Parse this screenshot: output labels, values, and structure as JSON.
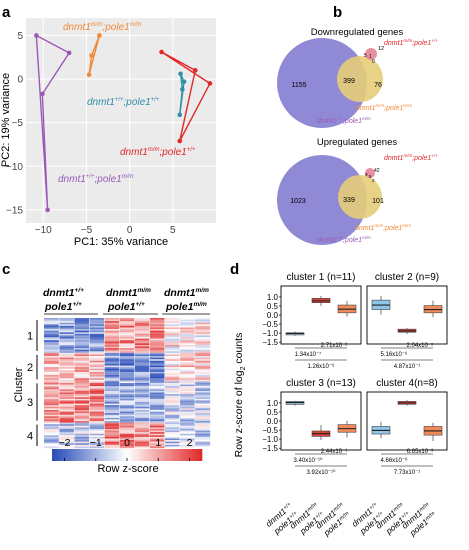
{
  "panels": {
    "a": "a",
    "b": "b",
    "c": "c",
    "d": "d"
  },
  "colors": {
    "wt": "#2e8fa6",
    "pole_mut": "#9b59b6",
    "dnmt_mut": "#e02828",
    "double_mut": "#f08a3a",
    "venn_purple": "#8a83d4",
    "venn_yellow": "#e5cd78",
    "venn_pink": "#e88a9b",
    "box_blue": "#8ec5e8",
    "box_red": "#d9433a",
    "box_orange": "#f08a5a"
  },
  "pca": {
    "xlabel": "PC1: 35%  variance",
    "ylabel": "PC2: 19%  variance",
    "labels": {
      "double": "dnmt1m/m;pole1m/m",
      "wt": "dnmt1+/+;pole1+/+",
      "dnmt": "dnmt1m/m;pole1+/+",
      "pole": "dnmt1+/+;pole1m/m"
    },
    "label_parts": {
      "double": [
        "dnmt1",
        "m/m",
        ";pole1",
        "m/m"
      ],
      "wt": [
        "dnmt1",
        "+/+",
        ";pole1",
        "+/+"
      ],
      "dnmt": [
        "dnmt1",
        "m/m",
        ";pole1",
        "+/+"
      ],
      "pole": [
        "dnmt1",
        "+/+",
        ";pole1",
        "m/m"
      ]
    }
  },
  "chart_data": [
    {
      "type": "scatter",
      "xlabel": "PC1: 35%  variance",
      "ylabel": "PC2: 19%  variance",
      "xlim": [
        -12,
        10
      ],
      "ylim": [
        -16.5,
        7
      ],
      "xticks": [
        -10,
        -5,
        0,
        5
      ],
      "yticks": [
        5,
        0,
        -5,
        -10,
        -15
      ],
      "grid": true,
      "series": [
        {
          "name": "dnmt1m/m;pole1m/m",
          "color": "#f08a3a",
          "x": [
            -4.7,
            -4.4,
            -3.5
          ],
          "y": [
            0.5,
            2.7,
            5.0
          ]
        },
        {
          "name": "dnmt1+/+;pole1+/+",
          "color": "#2e8fa6",
          "x": [
            5.8,
            6.3,
            5.9,
            6.1
          ],
          "y": [
            -4.1,
            -0.3,
            0.6,
            -1.2
          ]
        },
        {
          "name": "dnmt1m/m;pole1+/+",
          "color": "#e02828",
          "x": [
            3.7,
            9.3,
            5.8,
            7.6
          ],
          "y": [
            3.1,
            -0.5,
            -7.1,
            1.0
          ]
        },
        {
          "name": "dnmt1+/+;pole1m/m",
          "color": "#9b59b6",
          "x": [
            -10.8,
            -7.0,
            -10.1,
            -9.5
          ],
          "y": [
            5.0,
            3.0,
            -1.7,
            -15.0
          ]
        }
      ]
    },
    {
      "type": "heatmap",
      "colorbar_label": "Row z-score",
      "colorbar_ticks": [
        -2,
        -1,
        0,
        1,
        2
      ],
      "columns": [
        "dnmt1+/+;pole1+/+",
        "dnmt1+/+;pole1+/+",
        "dnmt1+/+;pole1+/+",
        "dnmt1+/+;pole1+/+",
        "dnmt1m/m;pole1+/+",
        "dnmt1m/m;pole1+/+",
        "dnmt1m/m;pole1+/+",
        "dnmt1m/m;pole1+/+",
        "dnmt1m/m;pole1m/m",
        "dnmt1m/m;pole1m/m",
        "dnmt1m/m;pole1m/m"
      ],
      "clusters": [
        "1",
        "2",
        "3",
        "4"
      ],
      "cluster_label": "Cluster",
      "cluster_row_counts": [
        11,
        9,
        13,
        8
      ]
    },
    {
      "type": "box",
      "ylabel": "Row  z-score of log2 counts",
      "yticks": [
        1.0,
        0.5,
        0.0,
        -0.5,
        -1.0,
        -1.5
      ],
      "ylim": [
        -1.6,
        1.6
      ],
      "categories": [
        "dnmt1+/+;pole1+/+",
        "dnmt1m/m;pole1+/+",
        "dnmt1m/m;pole1m/m"
      ],
      "panels": [
        {
          "title": "cluster 1 (n=11)",
          "boxes": [
            {
              "min": -1.15,
              "q1": -1.1,
              "median": -1.02,
              "q3": -0.98,
              "max": -0.92,
              "color": "#8ec5e8"
            },
            {
              "min": 0.5,
              "q1": 0.68,
              "median": 0.78,
              "q3": 0.92,
              "max": 1.05,
              "color": "#d9433a"
            },
            {
              "min": -0.08,
              "q1": 0.12,
              "median": 0.32,
              "q3": 0.55,
              "max": 0.78,
              "color": "#f08a5a"
            }
          ],
          "pvalues": [
            "1.34x10⁻⁷",
            "2.71x10⁻²",
            "1.26x10⁻⁶"
          ]
        },
        {
          "title": "cluster 2 (n=9)",
          "boxes": [
            {
              "min": 0.02,
              "q1": 0.3,
              "median": 0.55,
              "q3": 0.82,
              "max": 1.05,
              "color": "#8ec5e8"
            },
            {
              "min": -1.05,
              "q1": -0.95,
              "median": -0.88,
              "q3": -0.78,
              "max": -0.72,
              "color": "#d9433a"
            },
            {
              "min": -0.12,
              "q1": 0.12,
              "median": 0.3,
              "q3": 0.52,
              "max": 0.8,
              "color": "#f08a5a"
            }
          ],
          "pvalues": [
            "5.16x10⁻⁶",
            "2.04x10⁻⁵",
            "4.87x10⁻¹"
          ]
        },
        {
          "title": "cluster 3 (n=13)",
          "boxes": [
            {
              "min": 0.85,
              "q1": 0.92,
              "median": 1.02,
              "q3": 1.08,
              "max": 1.12,
              "color": "#8ec5e8"
            },
            {
              "min": -1.05,
              "q1": -0.85,
              "median": -0.7,
              "q3": -0.55,
              "max": -0.22,
              "color": "#d9433a"
            },
            {
              "min": -0.9,
              "q1": -0.62,
              "median": -0.42,
              "q3": -0.2,
              "max": 0.02,
              "color": "#f08a5a"
            }
          ],
          "pvalues": [
            "3.40x10⁻¹⁰",
            "2.44x10⁻¹",
            "3.92x10⁻¹⁰"
          ]
        },
        {
          "title": "cluster 4(n=8)",
          "boxes": [
            {
              "min": -0.95,
              "q1": -0.72,
              "median": -0.52,
              "q3": -0.3,
              "max": -0.05,
              "color": "#8ec5e8"
            },
            {
              "min": 0.85,
              "q1": 0.92,
              "median": 1.0,
              "q3": 1.08,
              "max": 1.15,
              "color": "#d9433a"
            },
            {
              "min": -1.1,
              "q1": -0.78,
              "median": -0.55,
              "q3": -0.3,
              "max": -0.1,
              "color": "#f08a5a"
            }
          ],
          "pvalues": [
            "4.66x10⁻⁶",
            "6.65x10⁻³",
            "7.73x10⁻¹"
          ]
        }
      ]
    }
  ],
  "venn": {
    "down": {
      "title": "Downregulated genes",
      "purple_only": "1155",
      "overlap": "399",
      "yellow_only": "76",
      "small_a": "12",
      "small_b": "5",
      "small_c": "1",
      "small_d": "0",
      "label_dnmt": [
        "dnmt1",
        "m/m",
        ";pole1",
        "+/+"
      ],
      "label_double": [
        "dnmt1",
        "m/m",
        ";pole1",
        "m/m"
      ],
      "label_pole": [
        "dnmt1",
        "+/+",
        ";pole1",
        "m/m"
      ]
    },
    "up": {
      "title": "Upregulated genes",
      "purple_only": "1023",
      "overlap": "339",
      "yellow_only": "101",
      "small_a": "42",
      "small_b": "9",
      "small_c": "5",
      "small_d": "2",
      "label_dnmt": [
        "dnmt1",
        "m/m",
        ";pole1",
        "+/+"
      ],
      "label_double": [
        "dnmt1",
        "m/m",
        ";pole1",
        "m/m"
      ],
      "label_pole": [
        "dnmt1",
        "+/+",
        ";pole1",
        "m/m"
      ]
    }
  },
  "heatmap": {
    "col_groups": [
      {
        "line1": [
          "dnmt1",
          "+/+"
        ],
        "line2": [
          "pole1",
          "+/+"
        ]
      },
      {
        "line1": [
          "dnmt1",
          "m/m"
        ],
        "line2": [
          "pole1",
          "+/+"
        ]
      },
      {
        "line1": [
          "dnmt1",
          "m/m"
        ],
        "line2": [
          "pole1",
          "m/m"
        ]
      }
    ],
    "cluster_label": "Cluster",
    "clusters": [
      "1",
      "2",
      "3",
      "4"
    ],
    "colorbar_label": "Row z-score",
    "colorbar_ticks": [
      "−2",
      "−1",
      "0",
      "1",
      "2"
    ]
  },
  "boxplot": {
    "ylabel": "Row  z-score of log",
    "ylabel_sub": "2",
    "ylabel_tail": " counts",
    "ytick_labels": [
      "1.0",
      "0.5",
      "0.0",
      "−0.5",
      "−1.0",
      "−1.5"
    ],
    "x_labels": [
      {
        "l1": [
          "dnmt1",
          "+/+"
        ],
        "l2": [
          "pole1",
          "+/+"
        ]
      },
      {
        "l1": [
          "dnmt1",
          "m/m"
        ],
        "l2": [
          "pole1",
          "+/+"
        ]
      },
      {
        "l1": [
          "dnmt1",
          "m/m"
        ],
        "l2": [
          "pole1",
          "m/m"
        ]
      }
    ]
  }
}
